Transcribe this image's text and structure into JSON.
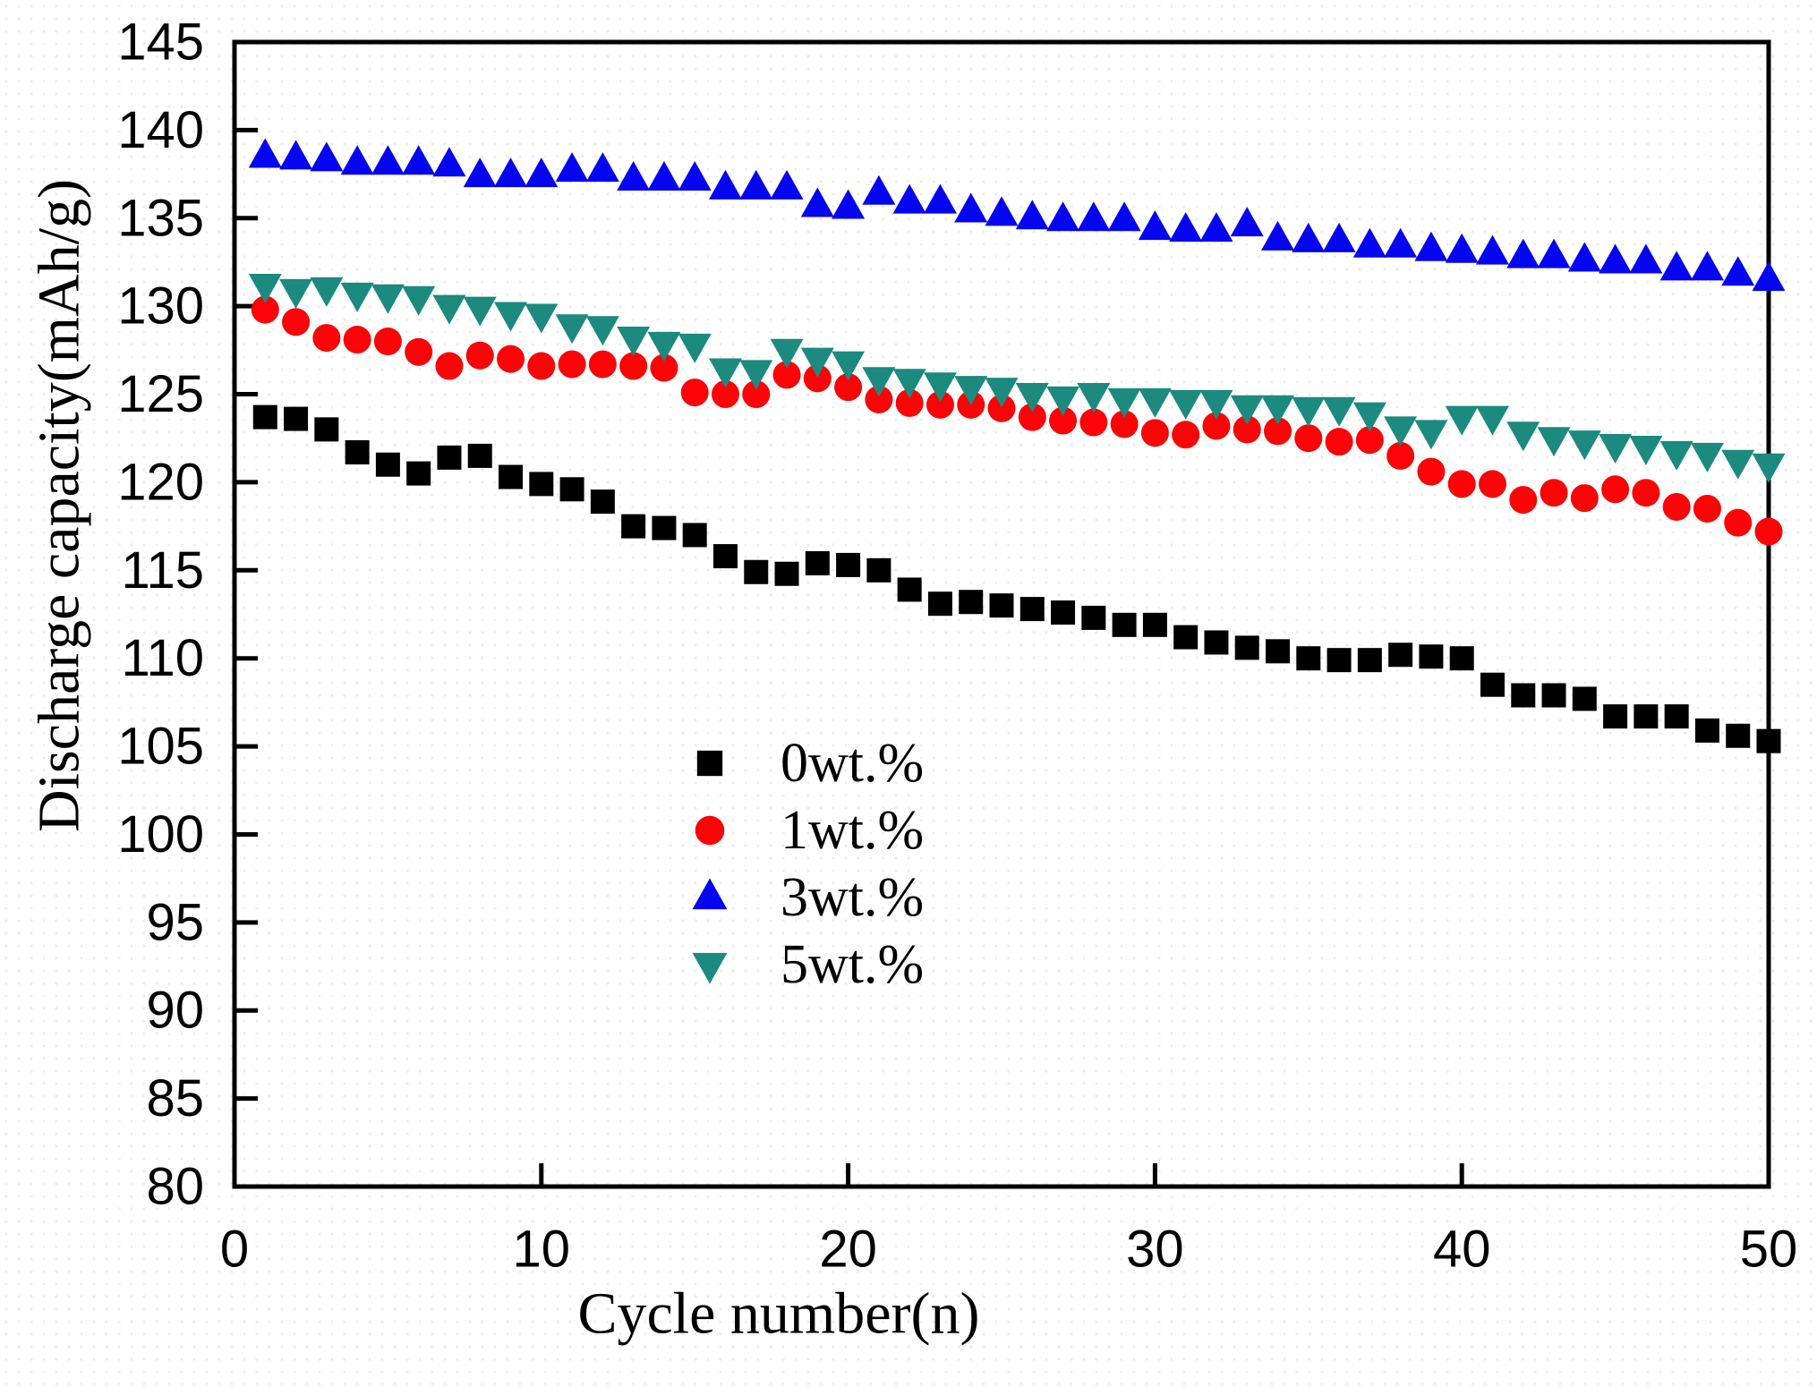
{
  "chart_data": {
    "type": "scatter",
    "title": "",
    "xlabel": "Cycle number(n)",
    "ylabel": "Discharge capacity(mAh/g)",
    "xlim": [
      0,
      50
    ],
    "ylim": [
      80,
      145
    ],
    "x_ticks": [
      0,
      10,
      20,
      30,
      40,
      50
    ],
    "y_ticks": [
      80,
      85,
      90,
      95,
      100,
      105,
      110,
      115,
      120,
      125,
      130,
      135,
      140,
      145
    ],
    "grid": false,
    "legend_position": "inside-center-left",
    "axis_color": "#000000",
    "x": [
      1,
      2,
      3,
      4,
      5,
      6,
      7,
      8,
      9,
      10,
      11,
      12,
      13,
      14,
      15,
      16,
      17,
      18,
      19,
      20,
      21,
      22,
      23,
      24,
      25,
      26,
      27,
      28,
      29,
      30,
      31,
      32,
      33,
      34,
      35,
      36,
      37,
      38,
      39,
      40,
      41,
      42,
      43,
      44,
      45,
      46,
      47,
      48,
      49,
      50
    ],
    "series": [
      {
        "name": "0wt.%",
        "marker": "square",
        "color": "#000000",
        "values": [
          123.7,
          123.6,
          123.0,
          121.7,
          121.0,
          120.5,
          121.4,
          121.5,
          120.3,
          119.9,
          119.6,
          118.9,
          117.5,
          117.4,
          117.0,
          115.8,
          114.9,
          114.8,
          115.4,
          115.3,
          115.0,
          113.9,
          113.1,
          113.2,
          113.0,
          112.8,
          112.6,
          112.3,
          111.9,
          111.9,
          111.2,
          110.9,
          110.6,
          110.4,
          110.0,
          109.9,
          109.9,
          110.2,
          110.1,
          110.0,
          108.5,
          107.9,
          107.9,
          107.7,
          106.7,
          106.7,
          106.7,
          105.9,
          105.6,
          105.3
        ]
      },
      {
        "name": "1wt.%",
        "marker": "circle",
        "color": "#fb0307",
        "values": [
          129.8,
          129.1,
          128.2,
          128.1,
          128.0,
          127.4,
          126.6,
          127.2,
          127.0,
          126.6,
          126.7,
          126.7,
          126.6,
          126.5,
          125.1,
          125.0,
          125.0,
          126.1,
          125.9,
          125.4,
          124.7,
          124.5,
          124.4,
          124.4,
          124.2,
          123.7,
          123.5,
          123.4,
          123.3,
          122.8,
          122.7,
          123.2,
          123.0,
          122.9,
          122.5,
          122.3,
          122.4,
          121.5,
          120.6,
          119.9,
          119.9,
          119.0,
          119.4,
          119.1,
          119.6,
          119.4,
          118.6,
          118.5,
          117.7,
          117.2
        ]
      },
      {
        "name": "3wt.%",
        "marker": "triangle-up",
        "color": "#0505ef",
        "values": [
          138.5,
          138.4,
          138.3,
          138.1,
          138.1,
          138.1,
          138.0,
          137.4,
          137.4,
          137.4,
          137.7,
          137.7,
          137.2,
          137.2,
          137.2,
          136.7,
          136.7,
          136.7,
          135.7,
          135.6,
          136.4,
          135.9,
          135.9,
          135.4,
          135.2,
          135.0,
          134.9,
          134.9,
          134.9,
          134.4,
          134.3,
          134.3,
          134.6,
          133.8,
          133.7,
          133.7,
          133.4,
          133.4,
          133.2,
          133.1,
          133.0,
          132.8,
          132.8,
          132.6,
          132.5,
          132.5,
          132.1,
          132.1,
          131.8,
          131.5
        ]
      },
      {
        "name": "5wt.%",
        "marker": "triangle-down",
        "color": "#1c8a7e",
        "values": [
          131.2,
          130.9,
          131.0,
          130.7,
          130.6,
          130.5,
          130.0,
          129.9,
          129.6,
          129.5,
          128.9,
          128.8,
          128.2,
          127.9,
          127.8,
          126.4,
          126.3,
          127.5,
          127.0,
          126.8,
          125.9,
          125.8,
          125.6,
          125.4,
          125.3,
          125.0,
          124.8,
          125.0,
          124.7,
          124.7,
          124.6,
          124.6,
          124.3,
          124.3,
          124.2,
          124.2,
          123.9,
          123.1,
          122.9,
          123.7,
          123.7,
          122.8,
          122.5,
          122.3,
          122.1,
          122.0,
          121.7,
          121.6,
          121.2,
          121.0
        ]
      }
    ]
  }
}
